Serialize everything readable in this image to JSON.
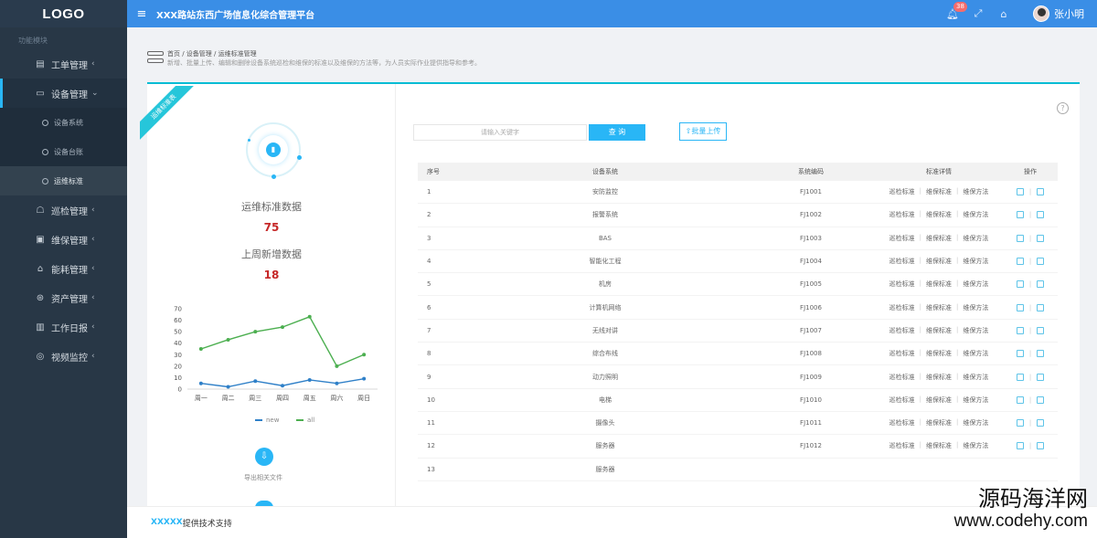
{
  "header": {
    "logo": "LOGO",
    "platform_title": "XXX路站东西广场信息化综合管理平台",
    "notification_count": "38",
    "username": "张小明"
  },
  "sidebar": {
    "section_label": "功能模块",
    "items": [
      {
        "label": "工单管理",
        "icon": "document-icon"
      },
      {
        "label": "设备管理",
        "icon": "device-icon"
      },
      {
        "label": "巡检管理",
        "icon": "inspection-icon"
      },
      {
        "label": "维保管理",
        "icon": "monitor-icon"
      },
      {
        "label": "能耗管理",
        "icon": "energy-icon"
      },
      {
        "label": "资产管理",
        "icon": "asset-icon"
      },
      {
        "label": "工作日报",
        "icon": "report-icon"
      },
      {
        "label": "视频监控",
        "icon": "camera-icon"
      }
    ],
    "sub_items": [
      "设备系统",
      "设备台账",
      "运维标准"
    ]
  },
  "breadcrumb": {
    "path": "首页 / 设备管理 / 运维标准管理",
    "description": "新增、批量上传、编辑和删除设备系统巡检和维保的标准以及维保的方法等，为人员实际作业提供指导和参考。"
  },
  "ribbon": "运维标准表",
  "stats": {
    "total_label": "运维标准数据",
    "total_value": "75",
    "weekly_label": "上周新增数据",
    "weekly_value": "18"
  },
  "chart_data": {
    "type": "line",
    "categories": [
      "周一",
      "周二",
      "周三",
      "周四",
      "周五",
      "周六",
      "周日"
    ],
    "yticks": [
      0,
      10,
      20,
      30,
      40,
      50,
      60,
      70
    ],
    "ylim": [
      0,
      70
    ],
    "series": [
      {
        "name": "new",
        "color": "#2f80c8",
        "values": [
          5,
          2,
          7,
          3,
          8,
          5,
          9
        ]
      },
      {
        "name": "all",
        "color": "#4caf50",
        "values": [
          35,
          43,
          50,
          54,
          63,
          20,
          30
        ]
      }
    ],
    "legend": "bottom",
    "grid": false
  },
  "export_label": "导出相关文件",
  "toolbar": {
    "search_placeholder": "请输入关键字",
    "search_label": "查 询",
    "upload_label": "批量上传"
  },
  "table": {
    "headers": [
      "序号",
      "设备系统",
      "系统编码",
      "标准详情",
      "操作"
    ],
    "detail_links": [
      "巡检标准",
      "维保标准",
      "维保方法"
    ],
    "rows": [
      {
        "no": "1",
        "system": "安防监控",
        "code": "FJ1001"
      },
      {
        "no": "2",
        "system": "报警系统",
        "code": "FJ1002"
      },
      {
        "no": "3",
        "system": "BAS",
        "code": "FJ1003"
      },
      {
        "no": "4",
        "system": "智能化工程",
        "code": "FJ1004"
      },
      {
        "no": "5",
        "system": "机房",
        "code": "FJ1005"
      },
      {
        "no": "6",
        "system": "计算机网络",
        "code": "FJ1006"
      },
      {
        "no": "7",
        "system": "无线对讲",
        "code": "FJ1007"
      },
      {
        "no": "8",
        "system": "综合布线",
        "code": "FJ1008"
      },
      {
        "no": "9",
        "system": "动力照明",
        "code": "FJ1009"
      },
      {
        "no": "10",
        "system": "电梯",
        "code": "FJ1010"
      },
      {
        "no": "11",
        "system": "摄像头",
        "code": "FJ1011"
      },
      {
        "no": "12",
        "system": "服务器",
        "code": "FJ1012"
      },
      {
        "no": "13",
        "system": "服务器",
        "code": ""
      }
    ]
  },
  "footer": {
    "company": "XXXXX",
    "text": "提供技术支持"
  },
  "watermark": {
    "name": "源码海洋网",
    "url": "www.codehy.com"
  }
}
